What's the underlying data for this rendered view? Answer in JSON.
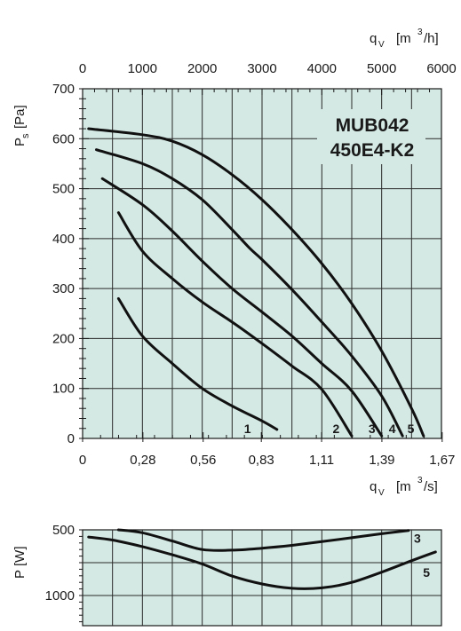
{
  "chart_data": [
    {
      "type": "line",
      "title": "MUB042 450E4-K2",
      "title_lines": [
        "MUB042",
        "450E4-K2"
      ],
      "ylabel": "P",
      "ylabel_sub": "s",
      "ylabel_unit": "[Pa]",
      "x_top_label": "q",
      "x_top_label_sub": "V",
      "x_top_unit": "[m",
      "x_top_unit_sup": "3",
      "x_top_unit_end": "/h]",
      "x_bottom_label": "q",
      "x_bottom_label_sub": "V",
      "x_bottom_unit": "[m",
      "x_bottom_unit_sup": "3",
      "x_bottom_unit_end": "/s]",
      "xlim_m3h": [
        0,
        6000
      ],
      "ylim": [
        0,
        700
      ],
      "y_ticks": [
        "0",
        "100",
        "200",
        "300",
        "400",
        "500",
        "600",
        "700"
      ],
      "y_tick_values": [
        0,
        100,
        200,
        300,
        400,
        500,
        600,
        700
      ],
      "x_top_ticks": [
        "0",
        "1000",
        "2000",
        "3000",
        "4000",
        "5000",
        "6000"
      ],
      "x_top_tick_values": [
        0,
        1000,
        2000,
        3000,
        4000,
        5000,
        6000
      ],
      "x_bottom_ticks": [
        "0",
        "0,28",
        "0,56",
        "0,83",
        "1,11",
        "1,39",
        "1,67"
      ],
      "x_bottom_tick_values_m3s": [
        0,
        0.28,
        0.56,
        0.83,
        1.11,
        1.39,
        1.67
      ],
      "grid": true,
      "series": [
        {
          "name": "1",
          "x": [
            600,
            1000,
            1500,
            2000,
            2500,
            3000,
            3250
          ],
          "y": [
            280,
            205,
            150,
            100,
            65,
            35,
            18
          ]
        },
        {
          "name": "2",
          "x": [
            600,
            1000,
            1500,
            2000,
            2500,
            3000,
            3500,
            4000,
            4500
          ],
          "y": [
            452,
            375,
            320,
            273,
            233,
            190,
            145,
            98,
            5
          ]
        },
        {
          "name": "3",
          "x": [
            330,
            1000,
            1500,
            2000,
            2500,
            3000,
            3500,
            4000,
            4500,
            5000
          ],
          "y": [
            520,
            468,
            415,
            355,
            300,
            253,
            205,
            150,
            95,
            5
          ]
        },
        {
          "name": "4",
          "x": [
            230,
            1000,
            1500,
            2000,
            2500,
            2800,
            3000,
            3500,
            4000,
            4500,
            5000,
            5350
          ],
          "y": [
            578,
            550,
            520,
            478,
            418,
            380,
            358,
            298,
            233,
            165,
            85,
            5
          ]
        },
        {
          "name": "5",
          "x": [
            100,
            1000,
            1500,
            2000,
            2500,
            3000,
            3500,
            4000,
            4500,
            5000,
            5500,
            5700
          ],
          "y": [
            620,
            608,
            595,
            568,
            528,
            478,
            418,
            350,
            270,
            175,
            60,
            5
          ]
        }
      ]
    },
    {
      "type": "line",
      "ylabel": "P",
      "ylabel_unit": "[W]",
      "y_ticks": [
        "500",
        "1000"
      ],
      "y_tick_values": [
        500,
        1000
      ],
      "grid": true,
      "series": [
        {
          "name": "3",
          "x": [
            600,
            1000,
            1500,
            2000,
            2500,
            3000,
            3500,
            4000,
            4500,
            5000,
            5450
          ],
          "y": [
            500,
            522,
            585,
            650,
            655,
            640,
            618,
            590,
            560,
            530,
            505
          ]
        },
        {
          "name": "5",
          "x": [
            100,
            500,
            1000,
            1500,
            2000,
            2500,
            3000,
            3500,
            4000,
            4500,
            5000,
            5500,
            5900
          ],
          "y": [
            555,
            578,
            628,
            690,
            760,
            852,
            912,
            945,
            942,
            900,
            822,
            735,
            668
          ]
        }
      ]
    }
  ]
}
